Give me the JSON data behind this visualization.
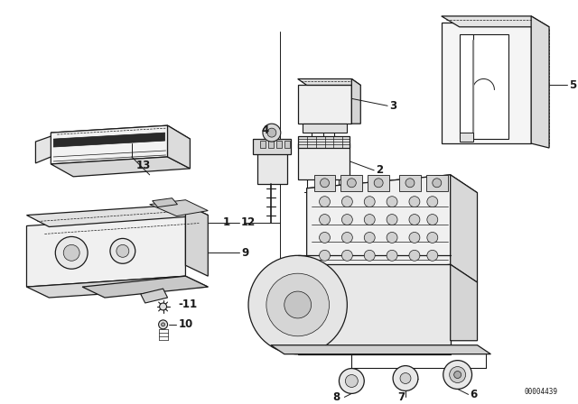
{
  "background_color": "#ffffff",
  "line_color": "#1a1a1a",
  "catalog_number": "00004439",
  "fig_width": 6.4,
  "fig_height": 4.48,
  "dpi": 100,
  "lw_main": 0.9,
  "lw_thin": 0.5,
  "lw_dash": 0.5
}
